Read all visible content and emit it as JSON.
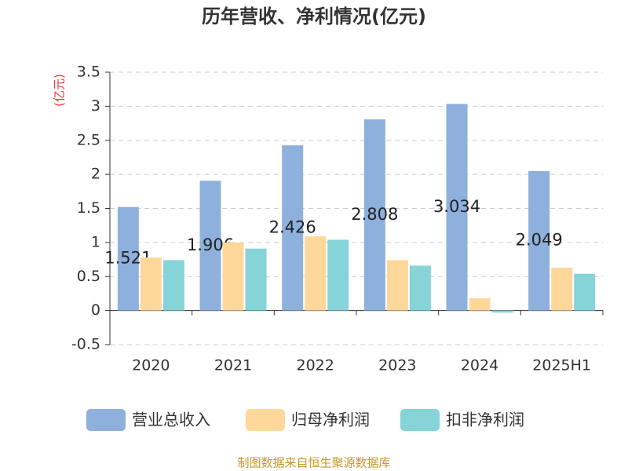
{
  "chart_data": {
    "type": "bar",
    "title": "历年营收、净利情况(亿元)",
    "y_axis_label": "(亿元)",
    "categories": [
      "2020",
      "2021",
      "2022",
      "2023",
      "2024",
      "2025H1"
    ],
    "series": [
      {
        "name": "营业总收入",
        "color": "#8eb0dd",
        "values": [
          1.521,
          1.906,
          2.426,
          2.808,
          3.034,
          2.049
        ]
      },
      {
        "name": "归母净利润",
        "color": "#fdd89a",
        "values": [
          0.78,
          1.0,
          1.09,
          0.74,
          0.18,
          0.63
        ]
      },
      {
        "name": "扣非净利润",
        "color": "#86d3d8",
        "values": [
          0.74,
          0.91,
          1.04,
          0.66,
          -0.03,
          0.54
        ]
      }
    ],
    "ylim": [
      -0.5,
      3.5
    ],
    "yticks": [
      -0.5,
      0,
      0.5,
      1,
      1.5,
      2,
      2.5,
      3,
      3.5
    ],
    "grid": true,
    "legend": "bottom",
    "source": "制图数据来自恒生聚源数据库"
  }
}
